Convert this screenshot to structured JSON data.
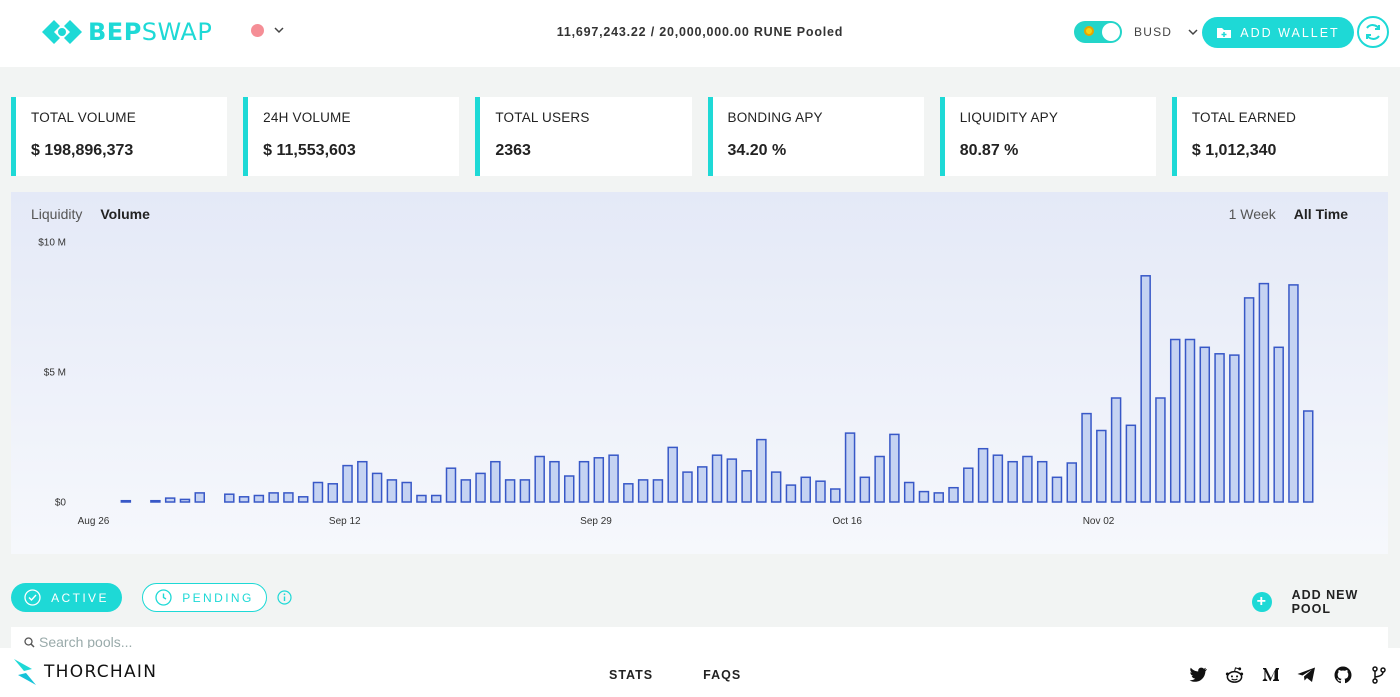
{
  "header": {
    "logo_bep": "BEP",
    "logo_swap": "SWAP",
    "pooled_text": "11,697,243.22 / 20,000,000.00 RUNE Pooled",
    "base_token": "BUSD",
    "add_wallet_label": "ADD WALLET",
    "status_color": "#f58e96",
    "accent_color": "#1ed9d6"
  },
  "stats": [
    {
      "label": "TOTAL VOLUME",
      "value": "$ 198,896,373"
    },
    {
      "label": "24H VOLUME",
      "value": "$ 11,553,603"
    },
    {
      "label": "TOTAL USERS",
      "value": "2363"
    },
    {
      "label": "BONDING APY",
      "value": "34.20 %"
    },
    {
      "label": "LIQUIDITY APY",
      "value": "80.87 %"
    },
    {
      "label": "TOTAL EARNED",
      "value": "$ 1,012,340"
    }
  ],
  "chart_tabs": {
    "liquidity": "Liquidity",
    "volume": "Volume",
    "selected": "Volume"
  },
  "range_tabs": {
    "week": "1 Week",
    "all": "All Time",
    "selected": "All Time"
  },
  "chart_data": {
    "type": "bar",
    "ylabel": "",
    "y_unit": "M",
    "ylim": [
      0,
      10
    ],
    "y_ticks": [
      {
        "value": 0,
        "label": "$0"
      },
      {
        "value": 5,
        "label": "$5 M"
      },
      {
        "value": 10,
        "label": "$10 M"
      }
    ],
    "x_ticks": [
      {
        "index": 0,
        "label": "Aug 26"
      },
      {
        "index": 17,
        "label": "Sep 12"
      },
      {
        "index": 34,
        "label": "Sep 29"
      },
      {
        "index": 51,
        "label": "Oct 16"
      },
      {
        "index": 68,
        "label": "Nov 02"
      }
    ],
    "values": [
      0,
      0,
      0,
      0.05,
      0,
      0.05,
      0.15,
      0.1,
      0.35,
      0,
      0.3,
      0.2,
      0.25,
      0.35,
      0.35,
      0.2,
      0.75,
      0.7,
      1.4,
      1.55,
      1.1,
      0.85,
      0.75,
      0.25,
      0.25,
      1.3,
      0.85,
      1.1,
      1.55,
      0.85,
      0.85,
      1.75,
      1.55,
      1.0,
      1.55,
      1.7,
      1.8,
      0.7,
      0.85,
      0.85,
      2.1,
      1.15,
      1.35,
      1.8,
      1.65,
      1.2,
      2.4,
      1.15,
      0.65,
      0.95,
      0.8,
      0.5,
      2.65,
      0.95,
      1.75,
      2.6,
      0.75,
      0.4,
      0.35,
      0.55,
      1.3,
      2.05,
      1.8,
      1.55,
      1.75,
      1.55,
      0.95,
      1.5,
      3.4,
      2.75,
      4.0,
      2.95,
      8.7,
      4.0,
      6.25,
      6.25,
      5.95,
      5.7,
      5.65,
      7.85,
      8.4,
      5.95,
      8.35,
      3.5
    ],
    "bar_fill": "#c5d3f2",
    "bar_stroke": "#3858c7"
  },
  "pools": {
    "active_label": "ACTIVE",
    "pending_label": "PENDING",
    "add_pool_label": "ADD NEW POOL",
    "search_placeholder": "Search pools..."
  },
  "footer": {
    "brand": "THORCHAIN",
    "links": [
      "STATS",
      "FAQS"
    ],
    "socials": [
      "twitter-icon",
      "reddit-icon",
      "medium-icon",
      "telegram-icon",
      "github-icon",
      "git-branch-icon"
    ]
  }
}
